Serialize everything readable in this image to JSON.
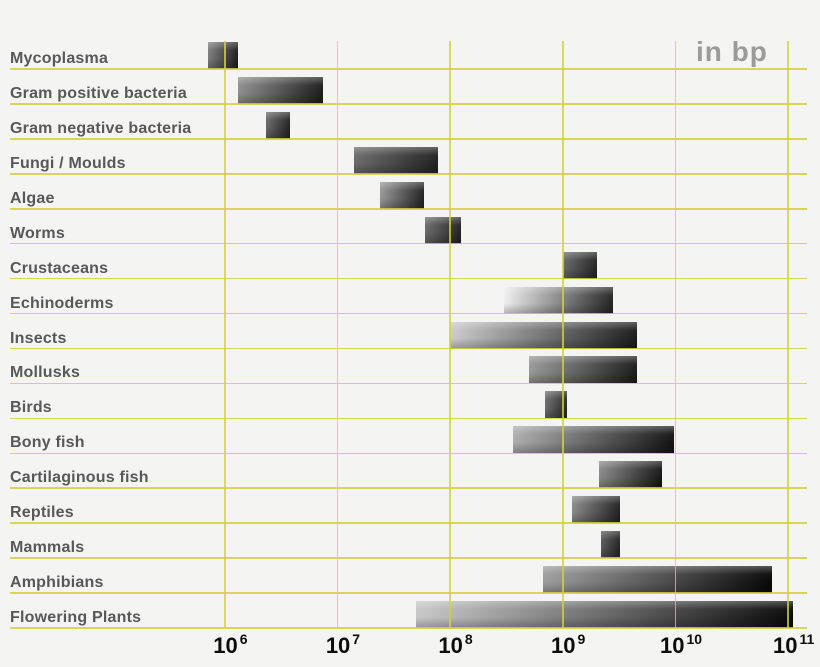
{
  "unit_label": "in bp",
  "colors": {
    "background": "#f4f4f2",
    "grid": "#d5cf3e",
    "category_label": "#58585a",
    "unit_label_gray": "#9b9b9b",
    "tick_label": "#0d0d0d"
  },
  "chart_data": {
    "type": "bar",
    "subtype": "horizontal-log-range-bars",
    "unit": "bp",
    "xscale": "log10",
    "xlabel": "",
    "ylabel": "",
    "grid": true,
    "xlim": [
      1000000,
      100000000000
    ],
    "x_ticks": [
      {
        "text": "10",
        "exp": "6",
        "value": 1000000
      },
      {
        "text": "10",
        "exp": "7",
        "value": 10000000
      },
      {
        "text": "10",
        "exp": "8",
        "value": 100000000
      },
      {
        "text": "10",
        "exp": "9",
        "value": 1000000000
      },
      {
        "text": "10",
        "exp": "10",
        "value": 10000000000
      },
      {
        "text": "10",
        "exp": "11",
        "value": 100000000000
      }
    ],
    "rows": [
      {
        "label": "Mycoplasma",
        "min_bp": 700000,
        "max_bp": 1300000,
        "start_color": "#7e7e7e",
        "end_color": "#1e1e1e"
      },
      {
        "label": "Gram positive bacteria",
        "min_bp": 1300000,
        "max_bp": 7400000,
        "start_color": "#8f8f8f",
        "end_color": "#1c1c1c"
      },
      {
        "label": "Gram negative bacteria",
        "min_bp": 2300000,
        "max_bp": 3800000,
        "start_color": "#696969",
        "end_color": "#222222"
      },
      {
        "label": "Fungi / Moulds",
        "min_bp": 14000000,
        "max_bp": 78000000,
        "start_color": "#6b6b6b",
        "end_color": "#222222"
      },
      {
        "label": "Algae",
        "min_bp": 24000000,
        "max_bp": 58000000,
        "start_color": "#989898",
        "end_color": "#222222"
      },
      {
        "label": "Worms",
        "min_bp": 60000000,
        "max_bp": 125000000,
        "start_color": "#6b6b6b",
        "end_color": "#222222"
      },
      {
        "label": "Crustaceans",
        "min_bp": 1000000000,
        "max_bp": 2000000000,
        "start_color": "#696969",
        "end_color": "#242424"
      },
      {
        "label": "Echinoderms",
        "min_bp": 300000000,
        "max_bp": 2800000000,
        "start_color": "#efefef",
        "end_color": "#242424"
      },
      {
        "label": "Insects",
        "min_bp": 100000000,
        "max_bp": 4600000000,
        "start_color": "#cccccc",
        "end_color": "#1c1c1c"
      },
      {
        "label": "Mollusks",
        "min_bp": 500000000,
        "max_bp": 4600000000,
        "start_color": "#999999",
        "end_color": "#1c1c1c"
      },
      {
        "label": "Birds",
        "min_bp": 700000000,
        "max_bp": 1100000000,
        "start_color": "#6e6e6e",
        "end_color": "#2a2a2a"
      },
      {
        "label": "Bony fish",
        "min_bp": 360000000,
        "max_bp": 9700000000,
        "start_color": "#aeaeae",
        "end_color": "#141414"
      },
      {
        "label": "Cartilaginous fish",
        "min_bp": 2100000000,
        "max_bp": 7600000000,
        "start_color": "#8a8a8a",
        "end_color": "#161616"
      },
      {
        "label": "Reptiles",
        "min_bp": 1200000000,
        "max_bp": 3200000000,
        "start_color": "#8a8a8a",
        "end_color": "#222222"
      },
      {
        "label": "Mammals",
        "min_bp": 2200000000,
        "max_bp": 3200000000,
        "start_color": "#5a5a5a",
        "end_color": "#242424"
      },
      {
        "label": "Amphibians",
        "min_bp": 670000000,
        "max_bp": 72000000000,
        "start_color": "#9e9e9e",
        "end_color": "#080808"
      },
      {
        "label": "Flowering Plants",
        "min_bp": 50000000,
        "max_bp": 110000000000,
        "start_color": "#c8c8c8",
        "end_color": "#0a0a0a"
      }
    ]
  }
}
